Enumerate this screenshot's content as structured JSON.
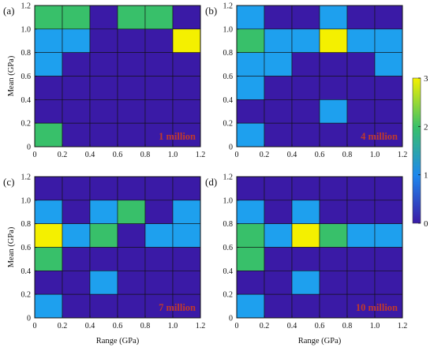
{
  "colors": {
    "0": "#3a1aa6",
    "1": "#1ea0ee",
    "2": "#38c06a",
    "3": "#f4f000"
  },
  "colorbar": {
    "ticks": [
      "0",
      "1",
      "2",
      "3"
    ]
  },
  "chart_data": [
    {
      "type": "heatmap",
      "panel_label": "(a)",
      "annotation": "1 million",
      "xlabel": "",
      "ylabel": "Mean (GPa)",
      "x_ticks": [
        "0",
        "0.2",
        "0.4",
        "0.6",
        "0.8",
        "1.0",
        "1.2"
      ],
      "y_ticks": [
        "0",
        "0.2",
        "0.4",
        "0.6",
        "0.8",
        "1.0",
        "1.2"
      ],
      "xlim": [
        0,
        1.2
      ],
      "ylim": [
        0,
        1.2
      ],
      "rows_top_to_bottom": [
        [
          2,
          2,
          0,
          2,
          2,
          0
        ],
        [
          1,
          1,
          0,
          0,
          0,
          3
        ],
        [
          1,
          0,
          0,
          0,
          0,
          0
        ],
        [
          0,
          0,
          0,
          0,
          0,
          0
        ],
        [
          0,
          0,
          0,
          0,
          0,
          0
        ],
        [
          2,
          0,
          0,
          0,
          0,
          0
        ]
      ]
    },
    {
      "type": "heatmap",
      "panel_label": "(b)",
      "annotation": "4 million",
      "xlabel": "",
      "ylabel": "",
      "x_ticks": [
        "0",
        "0.2",
        "0.4",
        "0.6",
        "0.8",
        "1.0",
        "1.2"
      ],
      "y_ticks": [
        "0",
        "0.2",
        "0.4",
        "0.6",
        "0.8",
        "1.0",
        "1.2"
      ],
      "xlim": [
        0,
        1.2
      ],
      "ylim": [
        0,
        1.2
      ],
      "rows_top_to_bottom": [
        [
          1,
          0,
          0,
          1,
          0,
          0
        ],
        [
          2,
          1,
          1,
          3,
          1,
          1
        ],
        [
          1,
          1,
          0,
          0,
          0,
          1
        ],
        [
          1,
          0,
          0,
          0,
          0,
          0
        ],
        [
          0,
          0,
          0,
          1,
          0,
          0
        ],
        [
          1,
          0,
          0,
          0,
          0,
          0
        ]
      ]
    },
    {
      "type": "heatmap",
      "panel_label": "(c)",
      "annotation": "7 million",
      "xlabel": "Range (GPa)",
      "ylabel": "Mean (GPa)",
      "x_ticks": [
        "0",
        "0.2",
        "0.4",
        "0.6",
        "0.8",
        "1.0",
        "1.2"
      ],
      "y_ticks": [
        "0",
        "0.2",
        "0.4",
        "0.6",
        "0.8",
        "1.0",
        "1.2"
      ],
      "xlim": [
        0,
        1.2
      ],
      "ylim": [
        0,
        1.2
      ],
      "rows_top_to_bottom": [
        [
          0,
          0,
          0,
          0,
          0,
          0
        ],
        [
          1,
          0,
          1,
          2,
          0,
          1
        ],
        [
          3,
          1,
          2,
          0,
          1,
          1
        ],
        [
          2,
          0,
          0,
          0,
          0,
          0
        ],
        [
          0,
          0,
          1,
          0,
          0,
          0
        ],
        [
          1,
          0,
          0,
          0,
          0,
          0
        ]
      ]
    },
    {
      "type": "heatmap",
      "panel_label": "(d)",
      "annotation": "10 million",
      "xlabel": "Range (GPa)",
      "ylabel": "",
      "x_ticks": [
        "0",
        "0.2",
        "0.4",
        "0.6",
        "0.8",
        "1.0",
        "1.2"
      ],
      "y_ticks": [
        "0",
        "0.2",
        "0.4",
        "0.6",
        "0.8",
        "1.0",
        "1.2"
      ],
      "xlim": [
        0,
        1.2
      ],
      "ylim": [
        0,
        1.2
      ],
      "rows_top_to_bottom": [
        [
          0,
          0,
          0,
          0,
          0,
          0
        ],
        [
          1,
          0,
          1,
          0,
          0,
          0
        ],
        [
          2,
          1,
          3,
          2,
          1,
          1
        ],
        [
          2,
          0,
          0,
          0,
          0,
          0
        ],
        [
          0,
          0,
          1,
          0,
          0,
          0
        ],
        [
          1,
          0,
          0,
          0,
          0,
          0
        ]
      ]
    }
  ]
}
